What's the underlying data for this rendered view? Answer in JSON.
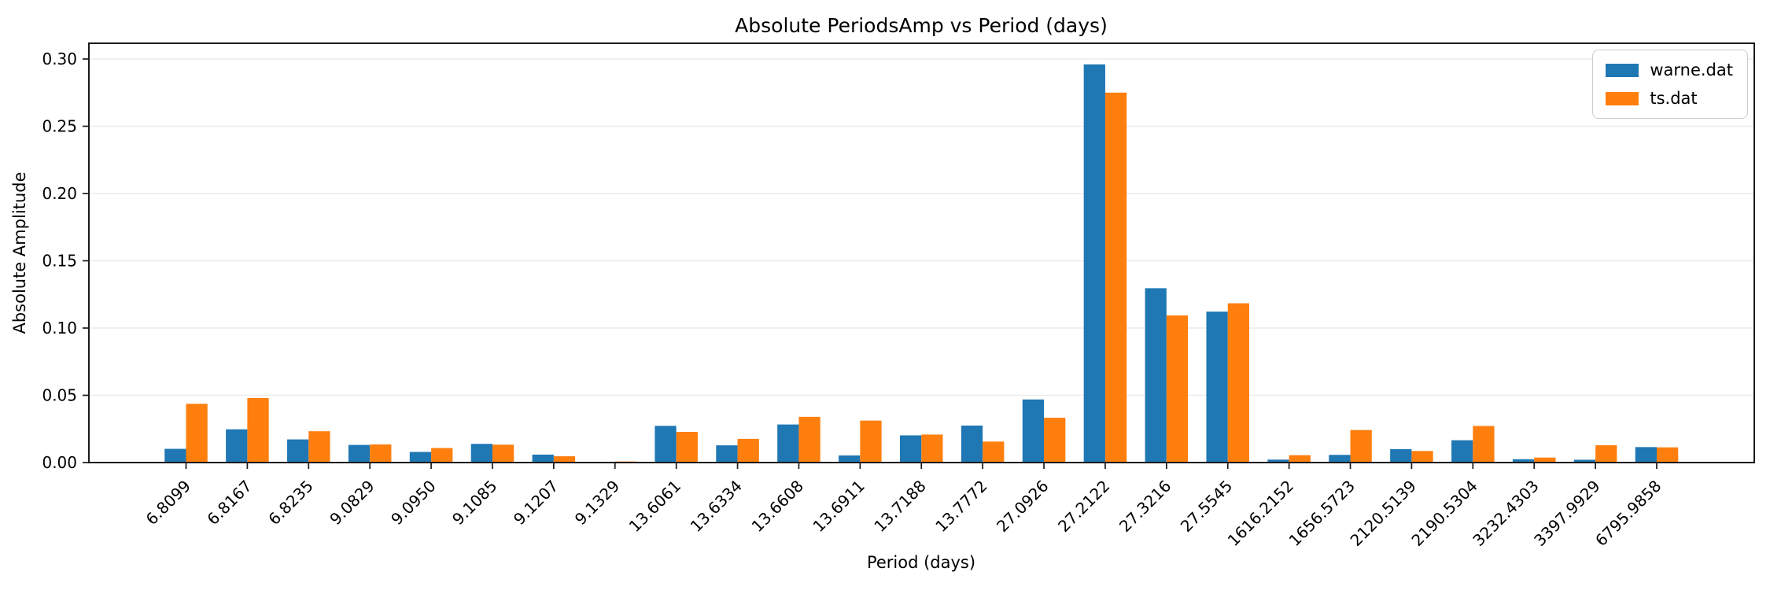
{
  "title": "Absolute PeriodsAmp vs Period (days)",
  "colors": {
    "series_blue": "#1f77b4",
    "series_orange": "#ff7f0e",
    "axis": "#1a1a1a",
    "grid": "#ececec",
    "legend_border": "#cccccc"
  },
  "legend": {
    "items": [
      {
        "label": "warne.dat",
        "color": "#1f77b4"
      },
      {
        "label": "ts.dat",
        "color": "#ff7f0e"
      }
    ]
  },
  "chart_data": {
    "type": "bar",
    "title": "Absolute PeriodsAmp vs Period (days)",
    "xlabel": "Period (days)",
    "ylabel": "Absolute Amplitude",
    "categories": [
      "6.8099",
      "6.8167",
      "6.8235",
      "9.0829",
      "9.0950",
      "9.1085",
      "9.1207",
      "9.1329",
      "13.6061",
      "13.6334",
      "13.6608",
      "13.6911",
      "13.7188",
      "13.7772",
      "27.0926",
      "27.2122",
      "27.3216",
      "27.5545",
      "1616.2152",
      "1656.5723",
      "2120.5139",
      "2190.5304",
      "3232.4303",
      "3397.9929",
      "6795.9858"
    ],
    "series": [
      {
        "name": "warne.dat",
        "color": "#1f77b4",
        "values": [
          0.0102,
          0.0247,
          0.0172,
          0.0131,
          0.0079,
          0.0139,
          0.0059,
          0.0003,
          0.0273,
          0.0128,
          0.0283,
          0.0053,
          0.0202,
          0.0275,
          0.0469,
          0.296,
          0.1296,
          0.1122,
          0.0022,
          0.0057,
          0.01,
          0.0166,
          0.0025,
          0.0021,
          0.0115
        ]
      },
      {
        "name": "ts.dat",
        "color": "#ff7f0e",
        "values": [
          0.0437,
          0.048,
          0.0233,
          0.0135,
          0.0108,
          0.0133,
          0.0047,
          0.0008,
          0.0228,
          0.0176,
          0.034,
          0.0312,
          0.0208,
          0.0156,
          0.0333,
          0.275,
          0.1094,
          0.1184,
          0.0055,
          0.0242,
          0.0086,
          0.0272,
          0.0037,
          0.0129,
          0.0113
        ]
      }
    ],
    "ylim": [
      0,
      0.3117
    ],
    "yticks": [
      0.0,
      0.05,
      0.1,
      0.15,
      0.2,
      0.25,
      0.3
    ],
    "ytick_format_decimals": 2,
    "grid": true,
    "legend_position": "upper right",
    "xtick_rotation": 45
  }
}
